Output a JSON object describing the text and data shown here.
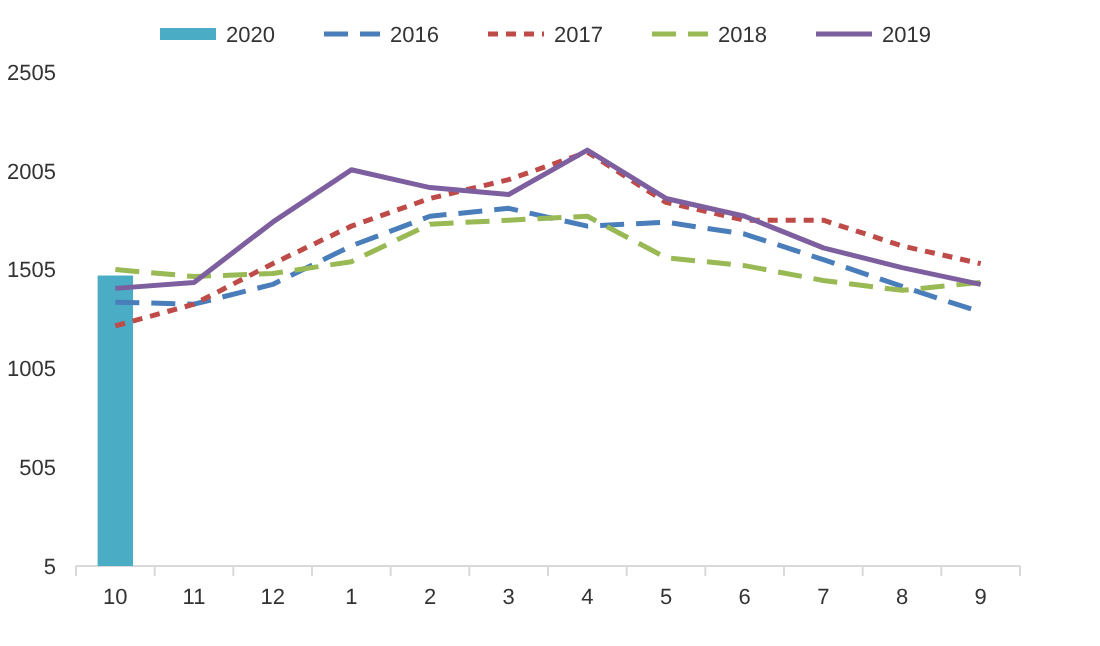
{
  "chart_data": {
    "type": "line",
    "categories": [
      "10",
      "11",
      "12",
      "1",
      "2",
      "3",
      "4",
      "5",
      "6",
      "7",
      "8",
      "9"
    ],
    "series": [
      {
        "name": "2020",
        "type": "bar",
        "color": "#4bacc6",
        "values": [
          1475,
          null,
          null,
          null,
          null,
          null,
          null,
          null,
          null,
          null,
          null,
          null
        ]
      },
      {
        "name": "2016",
        "color": "#4a7ebb",
        "line_style": "dashed",
        "values": [
          1340,
          1330,
          1430,
          1625,
          1775,
          1815,
          1725,
          1745,
          1685,
          1555,
          1420,
          1290
        ]
      },
      {
        "name": "2017",
        "color": "#be4b48",
        "line_style": "dotted",
        "values": [
          1220,
          1330,
          1535,
          1725,
          1865,
          1960,
          2100,
          1845,
          1755,
          1755,
          1625,
          1535
        ]
      },
      {
        "name": "2018",
        "color": "#98b954",
        "line_style": "dashed",
        "values": [
          1505,
          1470,
          1485,
          1545,
          1735,
          1755,
          1775,
          1565,
          1525,
          1450,
          1400,
          1440
        ]
      },
      {
        "name": "2019",
        "color": "#7d5fa0",
        "line_style": "solid",
        "values": [
          1410,
          1440,
          1745,
          2010,
          1920,
          1885,
          2110,
          1865,
          1775,
          1615,
          1515,
          1430
        ]
      }
    ],
    "ylim": [
      5,
      2505
    ],
    "yticks": [
      5,
      505,
      1005,
      1505,
      2005,
      2505
    ],
    "grid": false,
    "legend": "top"
  }
}
